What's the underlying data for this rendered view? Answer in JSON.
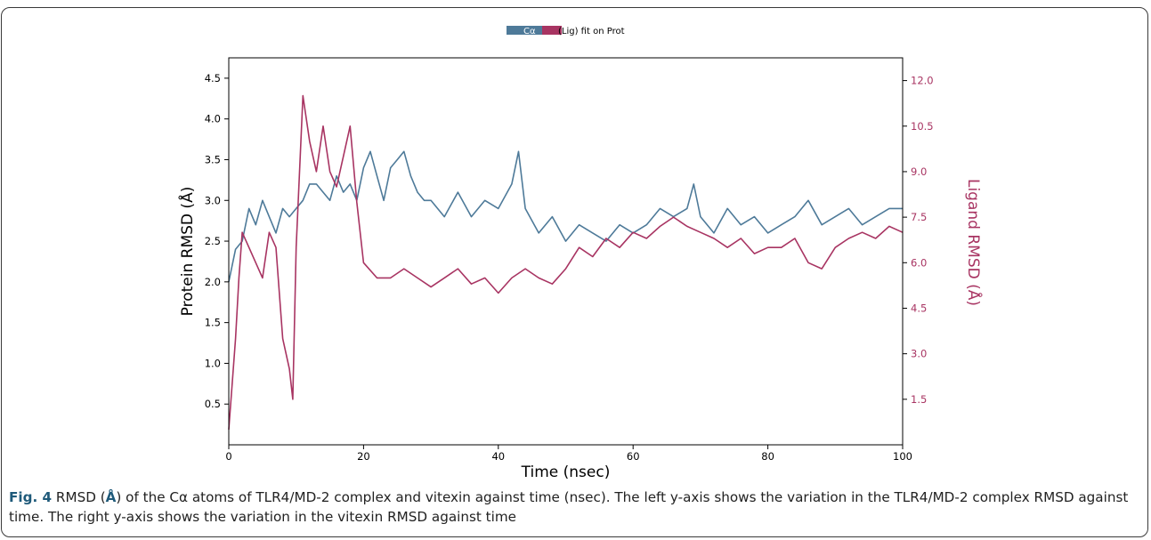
{
  "figure": {
    "caption_label": "Fig. 4",
    "caption_text_1": "RMSD (",
    "caption_unit": "Å",
    "caption_text_2": ") of the Cα atoms of TLR4/MD-2 complex and vitexin against time (nsec). The left y-axis shows the variation in the TLR4/MD-2 complex RMSD against time. The right y-axis shows the variation in the vitexin RMSD against time"
  },
  "chart_data": {
    "type": "line",
    "title": "",
    "legend": {
      "placement": "top-center",
      "entries": [
        "Cα",
        "(Lig) fit on Prot"
      ]
    },
    "xlabel": "Time (nsec)",
    "ylabel_left": "Protein RMSD (Å)",
    "ylabel_right": "Ligand RMSD (Å)",
    "xlim": [
      0,
      100
    ],
    "ylim_left": [
      0,
      4.75
    ],
    "ylim_right": [
      0,
      12.75
    ],
    "xticks": [
      "0",
      "20",
      "40",
      "60",
      "80",
      "100"
    ],
    "yticks_left": [
      "0.5",
      "1.0",
      "1.5",
      "2.0",
      "2.5",
      "3.0",
      "3.5",
      "4.0",
      "4.5"
    ],
    "yticks_right": [
      "1.5",
      "3.0",
      "4.5",
      "6.0",
      "7.5",
      "9.0",
      "10.5",
      "12.0"
    ],
    "grid": false,
    "colors": {
      "protein": "#4e7a99",
      "ligand": "#a83462",
      "axis": "#000000"
    },
    "series": [
      {
        "name": "Cα",
        "axis": "left",
        "x": [
          0,
          1,
          2,
          3,
          4,
          5,
          6,
          7,
          8,
          9,
          10,
          11,
          12,
          13,
          14,
          15,
          16,
          17,
          18,
          19,
          20,
          21,
          22,
          23,
          24,
          25,
          26,
          27,
          28,
          29,
          30,
          32,
          34,
          36,
          38,
          40,
          42,
          43,
          44,
          46,
          48,
          50,
          52,
          54,
          56,
          58,
          60,
          62,
          64,
          66,
          68,
          69,
          70,
          72,
          74,
          76,
          78,
          80,
          82,
          84,
          86,
          88,
          90,
          92,
          94,
          96,
          98,
          100
        ],
        "values": [
          2.0,
          2.4,
          2.5,
          2.9,
          2.7,
          3.0,
          2.8,
          2.6,
          2.9,
          2.8,
          2.9,
          3.0,
          3.2,
          3.2,
          3.1,
          3.0,
          3.3,
          3.1,
          3.2,
          3.0,
          3.4,
          3.6,
          3.3,
          3.0,
          3.4,
          3.5,
          3.6,
          3.3,
          3.1,
          3.0,
          3.0,
          2.8,
          3.1,
          2.8,
          3.0,
          2.9,
          3.2,
          3.6,
          2.9,
          2.6,
          2.8,
          2.5,
          2.7,
          2.6,
          2.5,
          2.7,
          2.6,
          2.7,
          2.9,
          2.8,
          2.9,
          3.2,
          2.8,
          2.6,
          2.9,
          2.7,
          2.8,
          2.6,
          2.7,
          2.8,
          3.0,
          2.7,
          2.8,
          2.9,
          2.7,
          2.8,
          2.9,
          2.9
        ]
      },
      {
        "name": "(Lig) fit on Prot",
        "axis": "right",
        "x": [
          0,
          0.5,
          1,
          1.5,
          2,
          3,
          4,
          5,
          6,
          7,
          8,
          9,
          9.5,
          10,
          11,
          12,
          13,
          14,
          15,
          16,
          17,
          18,
          19,
          20,
          22,
          24,
          26,
          28,
          30,
          32,
          34,
          36,
          38,
          40,
          42,
          44,
          46,
          48,
          50,
          52,
          54,
          56,
          58,
          60,
          62,
          64,
          66,
          68,
          70,
          72,
          74,
          76,
          78,
          80,
          82,
          84,
          86,
          88,
          90,
          92,
          94,
          96,
          98,
          100
        ],
        "values": [
          0.5,
          2.0,
          3.5,
          5.5,
          7.0,
          6.5,
          6.0,
          5.5,
          7.0,
          6.5,
          3.5,
          2.5,
          1.5,
          6.5,
          11.5,
          10.0,
          9.0,
          10.5,
          9.0,
          8.5,
          9.5,
          10.5,
          8.0,
          6.0,
          5.5,
          5.5,
          5.8,
          5.5,
          5.2,
          5.5,
          5.8,
          5.3,
          5.5,
          5.0,
          5.5,
          5.8,
          5.5,
          5.3,
          5.8,
          6.5,
          6.2,
          6.8,
          6.5,
          7.0,
          6.8,
          7.2,
          7.5,
          7.2,
          7.0,
          6.8,
          6.5,
          6.8,
          6.3,
          6.5,
          6.5,
          6.8,
          6.0,
          5.8,
          6.5,
          6.8,
          7.0,
          6.8,
          7.2,
          7.0
        ]
      }
    ]
  }
}
